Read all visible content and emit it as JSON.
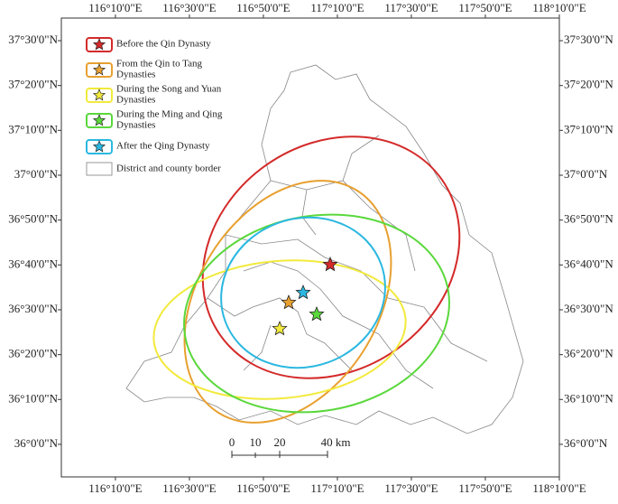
{
  "map": {
    "x_axis": {
      "range": [
        115.923,
        118.1667
      ],
      "ticks": [
        {
          "value": 116.1667,
          "label": "116°10'0\"E"
        },
        {
          "value": 116.5,
          "label": "116°30'0\"E"
        },
        {
          "value": 116.8333,
          "label": "116°50'0\"E"
        },
        {
          "value": 117.1667,
          "label": "117°10'0\"E"
        },
        {
          "value": 117.5,
          "label": "117°30'0\"E"
        },
        {
          "value": 117.8333,
          "label": "117°50'0\"E"
        },
        {
          "value": 118.1667,
          "label": "118°10'0\"E"
        }
      ]
    },
    "y_axis": {
      "range": [
        35.879,
        37.584
      ],
      "ticks": [
        {
          "value": 37.5,
          "label": "37°30'0\"N"
        },
        {
          "value": 37.3333,
          "label": "37°20'0\"N"
        },
        {
          "value": 37.1667,
          "label": "37°10'0\"N"
        },
        {
          "value": 37.0,
          "label": "37°0'0\"N"
        },
        {
          "value": 36.8333,
          "label": "36°50'0\"N"
        },
        {
          "value": 36.6667,
          "label": "36°40'0\"N"
        },
        {
          "value": 36.5,
          "label": "36°30'0\"N"
        },
        {
          "value": 36.3333,
          "label": "36°20'0\"N"
        },
        {
          "value": 36.1667,
          "label": "36°10'0\"N"
        },
        {
          "value": 36.0,
          "label": "36°0'0\"N"
        }
      ]
    },
    "legend": [
      {
        "lines": [
          "Before the Qin Dynasty"
        ],
        "color": "#d42a2a"
      },
      {
        "lines": [
          "From the Qin to Tang",
          "Dynasties"
        ],
        "color": "#e8a030"
      },
      {
        "lines": [
          "During the Song and Yuan",
          "Dynasties"
        ],
        "color": "#f2ea3c"
      },
      {
        "lines": [
          "During the Ming and Qing",
          "Dynasties"
        ],
        "color": "#5ad83c"
      },
      {
        "lines": [
          "After the Qing Dynasty"
        ],
        "color": "#2bb8e0"
      }
    ],
    "border_legend": "District and county border",
    "scale_bar": [
      "0",
      "10",
      "20",
      "40 km"
    ]
  }
}
